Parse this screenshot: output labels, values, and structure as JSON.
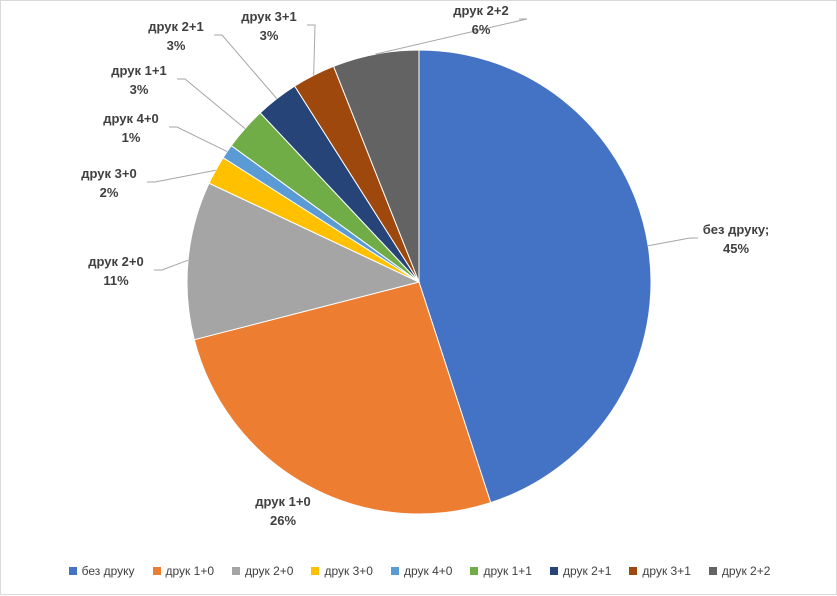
{
  "chart_data": {
    "type": "pie",
    "legend_position": "bottom",
    "slices": [
      {
        "category": "без друку",
        "label": "без друку;",
        "value": 45,
        "value_label": "45%",
        "color": "#4472C4"
      },
      {
        "category": "друк 1+0",
        "label": "друк 1+0",
        "value": 26,
        "value_label": "26%",
        "color": "#ED7D31"
      },
      {
        "category": "друк 2+0",
        "label": "друк 2+0",
        "value": 11,
        "value_label": "11%",
        "color": "#A5A5A5"
      },
      {
        "category": "друк 3+0",
        "label": "друк 3+0",
        "value": 2,
        "value_label": "2%",
        "color": "#FFC000"
      },
      {
        "category": "друк 4+0",
        "label": "друк 4+0",
        "value": 1,
        "value_label": "1%",
        "color": "#5B9BD5"
      },
      {
        "category": "друк 1+1",
        "label": "друк 1+1",
        "value": 3,
        "value_label": "3%",
        "color": "#70AD47"
      },
      {
        "category": "друк 2+1",
        "label": "друк 2+1",
        "value": 3,
        "value_label": "3%",
        "color": "#264478"
      },
      {
        "category": "друк 3+1",
        "label": "друк 3+1",
        "value": 3,
        "value_label": "3%",
        "color": "#9E480E"
      },
      {
        "category": "друк 2+2",
        "label": "друк 2+2",
        "value": 6,
        "value_label": "6%",
        "color": "#636363"
      }
    ]
  }
}
